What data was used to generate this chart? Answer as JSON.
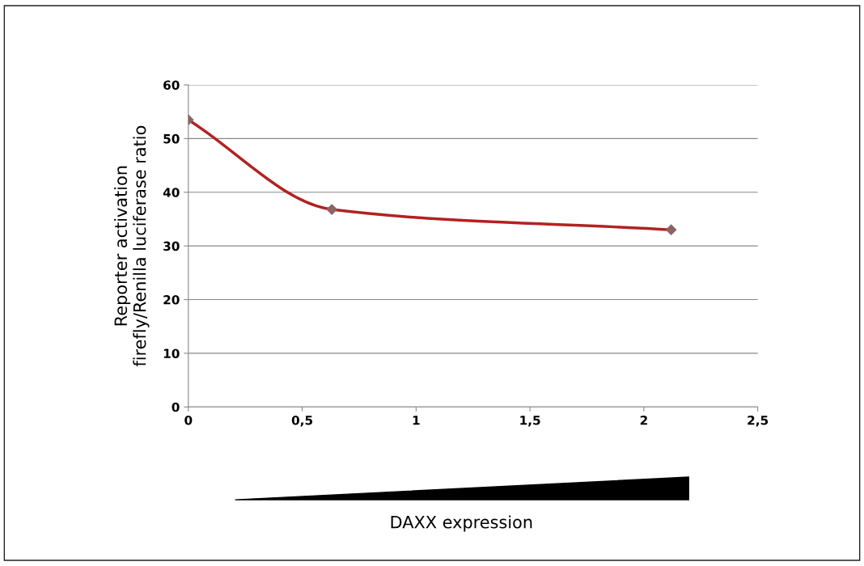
{
  "chart_data": {
    "type": "line",
    "x": [
      0,
      0.63,
      2.12
    ],
    "series": [
      {
        "color": "#b22222",
        "values": [
          53.5,
          36.8,
          33.0
        ]
      }
    ],
    "annotations": [
      "DAXX expression"
    ],
    "ylabel": "Reporter activation\nfirefly/Renilla luciferase ratio",
    "xlim": [
      0,
      2.5
    ],
    "xticks": [
      0,
      {
        "value": 0.5,
        "label": "0,5"
      },
      1,
      {
        "value": 1.5,
        "label": "1,5"
      },
      2,
      {
        "value": 2.5,
        "label": "2,5"
      }
    ],
    "ylim": [
      0,
      60
    ],
    "yticks": [
      0,
      10,
      20,
      30,
      40,
      50,
      60
    ],
    "grid": "y",
    "marker": "diamond",
    "line_style": "solid",
    "legend": false
  }
}
